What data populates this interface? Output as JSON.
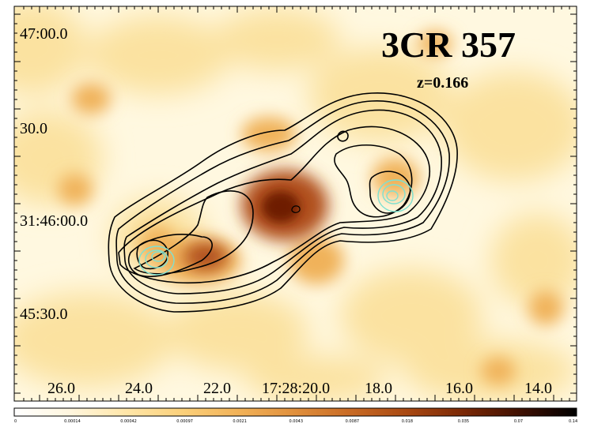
{
  "title": "3CR 357",
  "subtitle": "z=0.166",
  "dec_ticks": [
    "47:00.0",
    "30.0",
    "31:46:00.0",
    "45:30.0"
  ],
  "ra_ticks": [
    "26.0",
    "24.0",
    "22.0",
    "17:28:20.0",
    "18.0",
    "16.0",
    "14.0"
  ],
  "colorbar": {
    "ticks": [
      "0",
      "0.00014",
      "0.00042",
      "0.00097",
      "0.0021",
      "0.0043",
      "0.0087",
      "0.018",
      "0.035",
      "0.07",
      "0.14"
    ],
    "colors": [
      "#ffffff",
      "#fff6de",
      "#ffe6a8",
      "#fbd07a",
      "#f2b258",
      "#e08f3c",
      "#c86a24",
      "#a84812",
      "#7a2806",
      "#3f1002",
      "#000000"
    ]
  },
  "image_colors": {
    "background": "#fff8e0",
    "xray_low": "#fbe2a0",
    "xray_mid": "#f0b25a",
    "xray_high": "#b0501c",
    "xray_peak": "#6e1e05",
    "radio_contour": "#000000",
    "infrared_contour": "#7fe0d0"
  }
}
